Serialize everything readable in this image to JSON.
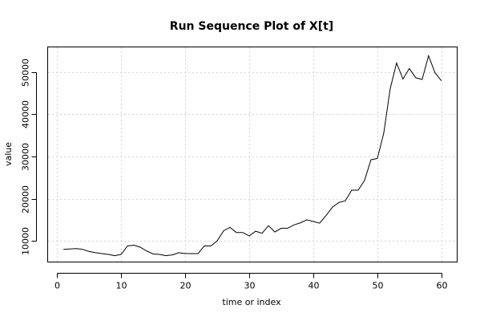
{
  "chart_data": {
    "type": "line",
    "title": "Run Sequence Plot of X[t]",
    "xlabel": "time or index",
    "ylabel": "value",
    "xlim": [
      -1.4,
      62.4
    ],
    "ylim": [
      5100,
      55800
    ],
    "xticks": [
      0,
      10,
      20,
      30,
      40,
      50,
      60
    ],
    "yticks": [
      10000,
      20000,
      30000,
      40000,
      50000
    ],
    "grid": true,
    "series": [
      {
        "x": [
          1,
          2,
          3,
          4,
          5,
          6,
          7,
          8,
          9,
          10,
          11,
          12,
          13,
          14,
          15,
          16,
          17,
          18,
          19,
          20,
          21,
          22,
          23,
          24,
          25,
          26,
          27,
          28,
          29,
          30,
          31,
          32,
          33,
          34,
          35,
          36,
          37,
          38,
          39,
          40,
          41,
          42,
          43,
          44,
          45,
          46,
          47,
          48,
          49,
          50,
          51,
          52,
          53,
          54,
          55,
          56,
          57,
          58,
          59,
          60
        ],
        "values": [
          8000,
          8100,
          8200,
          8000,
          7500,
          7200,
          7000,
          6800,
          6500,
          6800,
          8800,
          9000,
          8500,
          7600,
          6900,
          6800,
          6500,
          6700,
          7200,
          7000,
          7000,
          7000,
          8800,
          8800,
          10000,
          12400,
          13200,
          12000,
          12000,
          11200,
          12300,
          11800,
          13600,
          12100,
          13000,
          13000,
          13800,
          14300,
          15000,
          14600,
          14200,
          16000,
          18000,
          19100,
          19500,
          22000,
          22000,
          24300,
          29200,
          29500,
          35500,
          46000,
          52100,
          48300,
          50800,
          48600,
          48200,
          53800,
          49800,
          47900
        ]
      }
    ]
  }
}
